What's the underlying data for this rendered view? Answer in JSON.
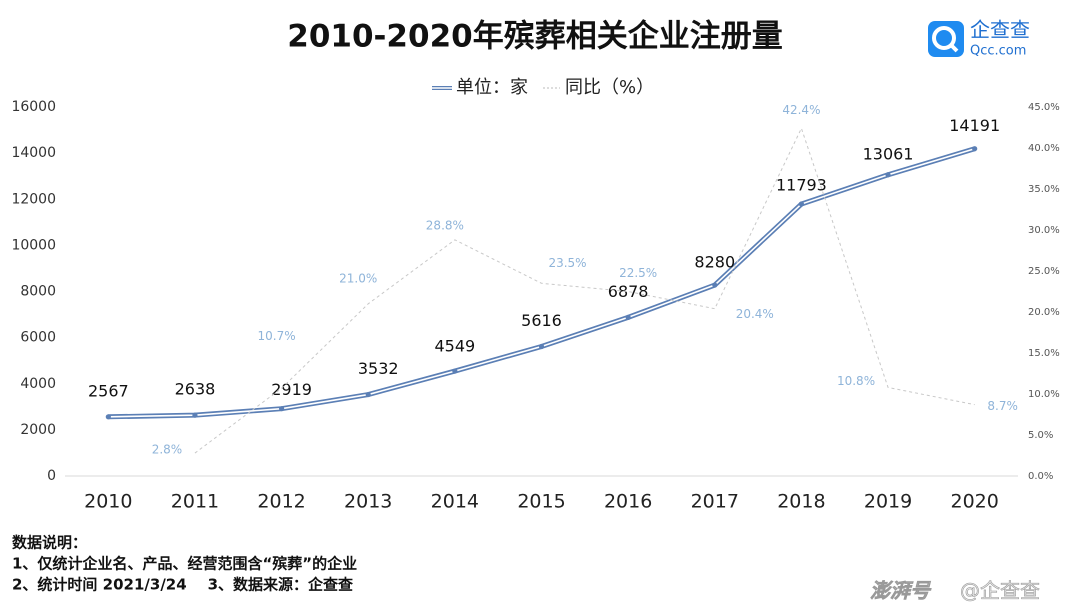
{
  "chart_data": {
    "type": "line",
    "title": "2010-2020年殡葬相关企业注册量",
    "categories": [
      "2010",
      "2011",
      "2012",
      "2013",
      "2014",
      "2015",
      "2016",
      "2017",
      "2018",
      "2019",
      "2020"
    ],
    "series": [
      {
        "name": "单位：家",
        "color": "#5b7fb5",
        "values": [
          2567,
          2638,
          2919,
          3532,
          4549,
          5616,
          6878,
          8280,
          11793,
          13061,
          14191
        ]
      },
      {
        "name": "同比（%）",
        "color": "#c8c8c8",
        "axis": "y2",
        "values": [
          null,
          2.8,
          10.7,
          21.0,
          28.8,
          23.5,
          22.5,
          20.4,
          42.4,
          10.8,
          8.7
        ],
        "value_labels": [
          null,
          "2.8%",
          "10.7%",
          "21.0%",
          "28.8%",
          "23.5%",
          "22.5%",
          "20.4%",
          "42.4%",
          "10.8%",
          "8.7%"
        ]
      }
    ],
    "ylim": [
      0,
      16000
    ],
    "yticks": [
      0,
      2000,
      4000,
      6000,
      8000,
      10000,
      12000,
      14000,
      16000
    ],
    "y2lim": [
      0,
      45
    ],
    "y2ticks": [
      {
        "value": 0,
        "label": "0.0%"
      },
      {
        "value": 5,
        "label": "5.0%"
      },
      {
        "value": 10,
        "label": "10.0%"
      },
      {
        "value": 15,
        "label": "15.0%"
      },
      {
        "value": 20,
        "label": "20.0%"
      },
      {
        "value": 25,
        "label": "25.0%"
      },
      {
        "value": 30,
        "label": "30.0%"
      },
      {
        "value": 35,
        "label": "35.0%"
      },
      {
        "value": 40,
        "label": "40.0%"
      },
      {
        "value": 45,
        "label": "45.0%"
      }
    ],
    "grid": false,
    "legend": "top"
  },
  "logo": {
    "name": "企查查",
    "url": "Qcc.com"
  },
  "notes": {
    "heading": "数据说明：",
    "lines": [
      "1、仅统计企业名、产品、经营范围含“殡葬”的企业",
      "2、统计时间 2021/3/24    3、数据来源：企查查"
    ]
  },
  "watermark": {
    "platform": "澎湃号",
    "account": "@企查查"
  }
}
